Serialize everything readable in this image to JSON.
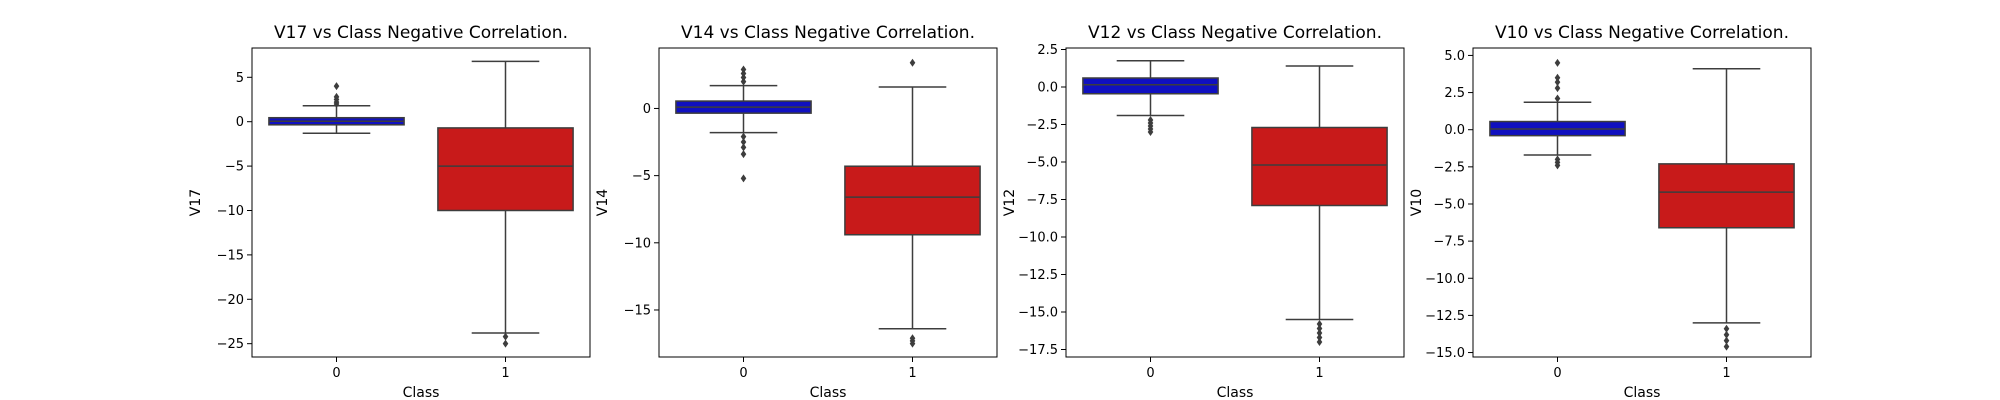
{
  "chart_data": [
    {
      "type": "boxplot",
      "title": "V17 vs Class Negative Correlation.",
      "xlabel": "Class",
      "ylabel": "V17",
      "categories": [
        "0",
        "1"
      ],
      "ylim": [
        -26.5,
        8.3
      ],
      "yticks": [
        5,
        0,
        -5,
        -10,
        -15,
        -20,
        -25
      ],
      "ytick_labels": [
        "5",
        "0",
        "−5",
        "−10",
        "−15",
        "−20",
        "−25"
      ],
      "boxes": [
        {
          "category": "0",
          "color": "#1010c0",
          "whisker_low": -1.3,
          "q1": -0.35,
          "median": 0.05,
          "q3": 0.45,
          "whisker_high": 1.8,
          "outliers": [
            2.0,
            2.2,
            2.5,
            2.8,
            4.0
          ]
        },
        {
          "category": "1",
          "color": "#c81a1a",
          "whisker_low": -23.8,
          "q1": -10.0,
          "median": -5.0,
          "q3": -0.7,
          "whisker_high": 6.8,
          "outliers": [
            -24.2,
            -25.0
          ]
        }
      ]
    },
    {
      "type": "boxplot",
      "title": "V14 vs Class Negative Correlation.",
      "xlabel": "Class",
      "ylabel": "V14",
      "categories": [
        "0",
        "1"
      ],
      "ylim": [
        -18.5,
        4.5
      ],
      "yticks": [
        0,
        -5,
        -10,
        -15
      ],
      "ytick_labels": [
        "0",
        "−5",
        "−10",
        "−15"
      ],
      "boxes": [
        {
          "category": "0",
          "color": "#1010c0",
          "whisker_low": -1.8,
          "q1": -0.35,
          "median": 0.1,
          "q3": 0.55,
          "whisker_high": 1.7,
          "outliers": [
            2.0,
            2.3,
            2.6,
            2.9,
            -2.1,
            -2.5,
            -2.9,
            -3.4,
            -5.2
          ]
        },
        {
          "category": "1",
          "color": "#c81a1a",
          "whisker_low": -16.4,
          "q1": -9.4,
          "median": -6.6,
          "q3": -4.3,
          "whisker_high": 1.6,
          "outliers": [
            3.4,
            -17.1,
            -17.3,
            -17.5
          ]
        }
      ]
    },
    {
      "type": "boxplot",
      "title": "V12 vs Class Negative Correlation.",
      "xlabel": "Class",
      "ylabel": "V12",
      "categories": [
        "0",
        "1"
      ],
      "ylim": [
        -18.0,
        2.6
      ],
      "yticks": [
        2.5,
        0.0,
        -2.5,
        -5.0,
        -7.5,
        -10.0,
        -12.5,
        -15.0,
        -17.5
      ],
      "ytick_labels": [
        "2.5",
        "0.0",
        "−2.5",
        "−5.0",
        "−7.5",
        "−10.0",
        "−12.5",
        "−15.0",
        "−17.5"
      ],
      "boxes": [
        {
          "category": "0",
          "color": "#1010c0",
          "whisker_low": -1.9,
          "q1": -0.45,
          "median": 0.15,
          "q3": 0.6,
          "whisker_high": 1.75,
          "outliers": [
            -2.2,
            -2.4,
            -2.6,
            -2.8,
            -3.0
          ]
        },
        {
          "category": "1",
          "color": "#c81a1a",
          "whisker_low": -15.5,
          "q1": -7.9,
          "median": -5.2,
          "q3": -2.7,
          "whisker_high": 1.4,
          "outliers": [
            -15.8,
            -16.1,
            -16.4,
            -16.7,
            -17.0
          ]
        }
      ]
    },
    {
      "type": "boxplot",
      "title": "V10 vs Class Negative Correlation.",
      "xlabel": "Class",
      "ylabel": "V10",
      "categories": [
        "0",
        "1"
      ],
      "ylim": [
        -15.3,
        5.5
      ],
      "yticks": [
        5.0,
        2.5,
        0.0,
        -2.5,
        -5.0,
        -7.5,
        -10.0,
        -12.5,
        -15.0
      ],
      "ytick_labels": [
        "5.0",
        "2.5",
        "0.0",
        "−2.5",
        "−5.0",
        "−7.5",
        "−10.0",
        "−12.5",
        "−15.0"
      ],
      "boxes": [
        {
          "category": "0",
          "color": "#1010c0",
          "whisker_low": -1.7,
          "q1": -0.4,
          "median": 0.05,
          "q3": 0.55,
          "whisker_high": 1.85,
          "outliers": [
            2.1,
            2.8,
            3.2,
            3.5,
            4.5,
            -2.0,
            -2.2,
            -2.4
          ]
        },
        {
          "category": "1",
          "color": "#c81a1a",
          "whisker_low": -13.0,
          "q1": -6.6,
          "median": -4.2,
          "q3": -2.3,
          "whisker_high": 4.1,
          "outliers": [
            -13.4,
            -13.8,
            -14.2,
            -14.6
          ]
        }
      ]
    }
  ]
}
